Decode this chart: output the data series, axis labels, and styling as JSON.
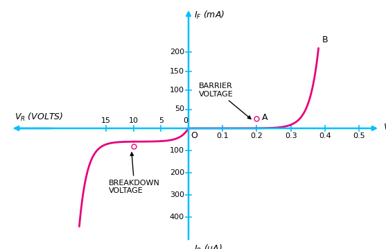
{
  "axis_color": "#00bfff",
  "curve_color": "#e8007a",
  "background_color": "#ffffff",
  "if_yticks": [
    50,
    100,
    150,
    200
  ],
  "ir_yticks": [
    100,
    200,
    300,
    400
  ],
  "vf_xticks": [
    0.1,
    0.2,
    0.3,
    0.4,
    0.5
  ],
  "vr_xticks": [
    5,
    10,
    15
  ],
  "label_IF": "$I_F$ (mA)",
  "label_IR": "$I_R$ (μA)",
  "label_VF": "$V_F$ (VOLTS)",
  "label_VR": "$V_R$ (VOLTS)",
  "annotation_A": "A",
  "annotation_B": "B",
  "annotation_barrier": "BARRIER\nVOLTAGE",
  "annotation_breakdown": "BREAKDOWN\nVOLTAGE",
  "barrier_point_vf": 0.2,
  "barrier_point_if": 25,
  "breakdown_point_vr": 10,
  "breakdown_point_ir": 80,
  "origin_label": "O",
  "xlim_left": -16.5,
  "xlim_right": 0.58,
  "ylim_bottom": -450,
  "ylim_top": 230
}
